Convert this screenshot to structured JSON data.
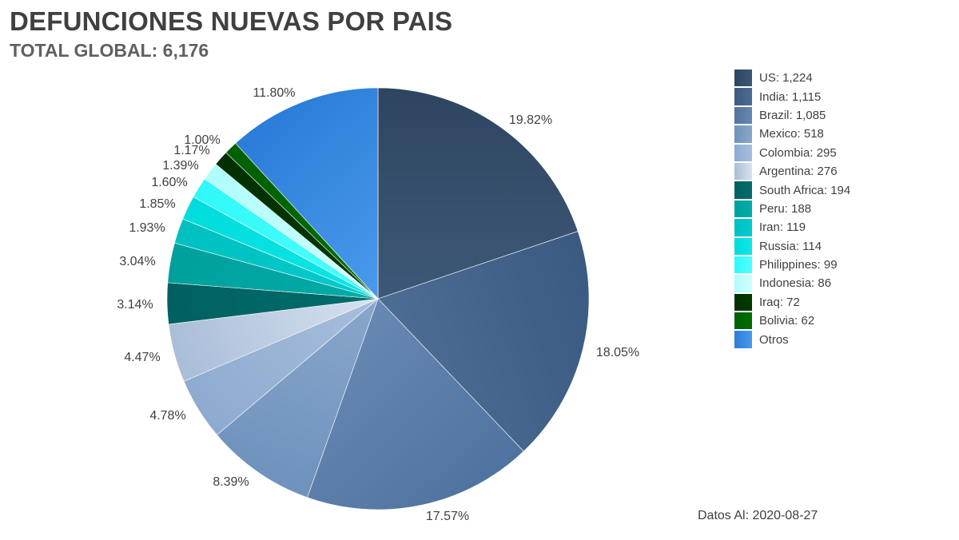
{
  "title": "DEFUNCIONES NUEVAS POR PAIS",
  "subtitle": "TOTAL GLOBAL: 6,176",
  "footer": {
    "date_note": "Datos Al: 2020-08-27"
  },
  "chart_data": {
    "type": "pie",
    "title": "DEFUNCIONES NUEVAS POR PAIS",
    "subtitle": "TOTAL GLOBAL: 6,176",
    "legend_position": "right",
    "slices": [
      {
        "legend_label": "US:  1,224",
        "value": 1224,
        "percent_label": "19.82%",
        "color": "#2e4560",
        "color_light": "#3d5877"
      },
      {
        "legend_label": "India:  1,115",
        "value": 1115,
        "percent_label": "18.05%",
        "color": "#3a5a82",
        "color_light": "#4d6d94"
      },
      {
        "legend_label": "Brazil:  1,085",
        "value": 1085,
        "percent_label": "17.57%",
        "color": "#4f73a0",
        "color_light": "#6788b2"
      },
      {
        "legend_label": "Mexico:  518",
        "value": 518,
        "percent_label": "8.39%",
        "color": "#6e92bd",
        "color_light": "#8aa7cb"
      },
      {
        "legend_label": "Colombia:  295",
        "value": 295,
        "percent_label": "4.78%",
        "color": "#8eaad0",
        "color_light": "#a8bfdc"
      },
      {
        "legend_label": "Argentina:  276",
        "value": 276,
        "percent_label": "4.47%",
        "color": "#a9bdd8",
        "color_light": "#d8e2ef"
      },
      {
        "legend_label": "South Africa:  194",
        "value": 194,
        "percent_label": "3.14%",
        "color": "#006060",
        "color_light": "#006e6c"
      },
      {
        "legend_label": "Peru:  188",
        "value": 188,
        "percent_label": "3.04%",
        "color": "#00a09c",
        "color_light": "#00aca8"
      },
      {
        "legend_label": "Iran:  119",
        "value": 119,
        "percent_label": "1.93%",
        "color": "#00c0c0",
        "color_light": "#00cccc"
      },
      {
        "legend_label": "Russia:  114",
        "value": 114,
        "percent_label": "1.85%",
        "color": "#00dcdc",
        "color_light": "#10e6e6"
      },
      {
        "legend_label": "Philippines:  99",
        "value": 99,
        "percent_label": "1.60%",
        "color": "#30f8f8",
        "color_light": "#50ffff"
      },
      {
        "legend_label": "Indonesia:  86",
        "value": 86,
        "percent_label": "1.39%",
        "color": "#b0fcfc",
        "color_light": "#d0ffff"
      },
      {
        "legend_label": "Iraq:  72",
        "value": 72,
        "percent_label": "1.17%",
        "color": "#003000",
        "color_light": "#003a00"
      },
      {
        "legend_label": "Bolivia:  62",
        "value": 62,
        "percent_label": "1.00%",
        "color": "#006000",
        "color_light": "#006e00"
      },
      {
        "legend_label": "Otros",
        "value": 729,
        "percent_label": "11.80%",
        "color": "#2a7dd8",
        "color_light": "#4a9aec"
      }
    ]
  }
}
